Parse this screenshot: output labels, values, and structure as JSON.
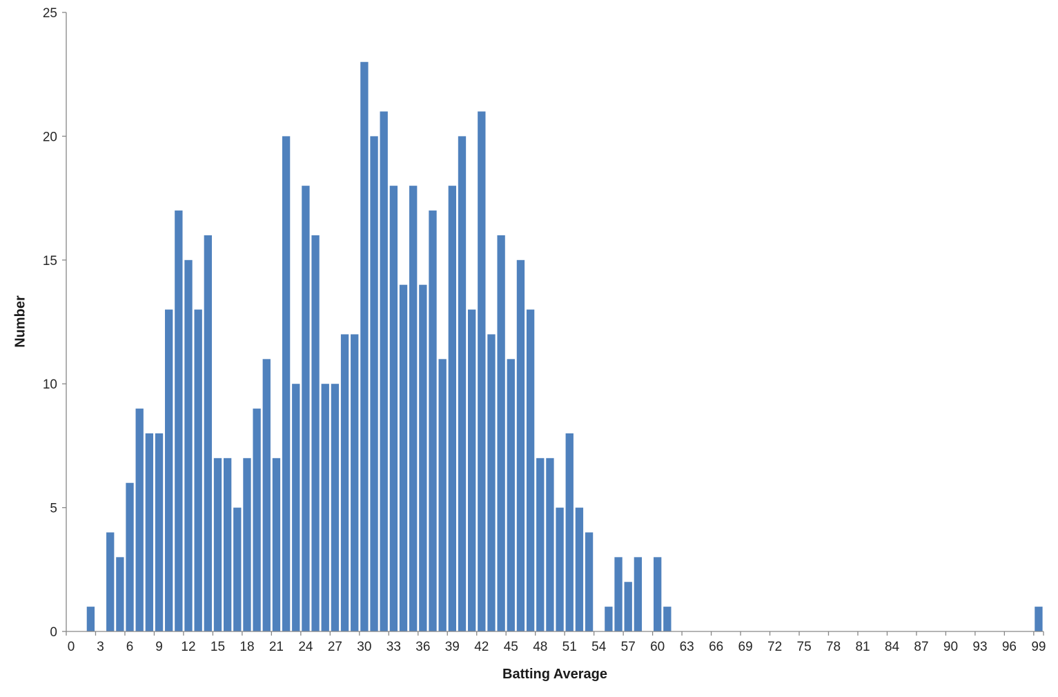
{
  "chart_data": {
    "type": "bar",
    "title": "",
    "xlabel": "Batting Average",
    "ylabel": "Number",
    "x": [
      2,
      4,
      5,
      6,
      7,
      8,
      9,
      10,
      11,
      12,
      13,
      14,
      15,
      16,
      17,
      18,
      19,
      20,
      21,
      22,
      23,
      24,
      25,
      26,
      27,
      28,
      29,
      30,
      31,
      32,
      33,
      34,
      35,
      36,
      37,
      38,
      39,
      40,
      41,
      42,
      43,
      44,
      45,
      46,
      47,
      48,
      49,
      50,
      51,
      52,
      53,
      55,
      56,
      57,
      58,
      60,
      61,
      99
    ],
    "values": [
      1,
      4,
      3,
      6,
      9,
      8,
      8,
      13,
      17,
      15,
      13,
      16,
      7,
      7,
      5,
      7,
      9,
      11,
      7,
      20,
      10,
      18,
      16,
      10,
      10,
      12,
      12,
      23,
      20,
      21,
      18,
      14,
      18,
      14,
      17,
      11,
      18,
      20,
      13,
      21,
      12,
      16,
      11,
      15,
      13,
      7,
      7,
      5,
      8,
      5,
      4,
      1,
      3,
      2,
      3,
      3,
      1,
      1
    ],
    "xlim": [
      0,
      100
    ],
    "ylim": [
      0,
      25
    ],
    "xticks": [
      0,
      3,
      6,
      9,
      12,
      15,
      18,
      21,
      24,
      27,
      30,
      33,
      36,
      39,
      42,
      45,
      48,
      51,
      54,
      57,
      60,
      63,
      66,
      69,
      72,
      75,
      78,
      81,
      84,
      87,
      90,
      93,
      96,
      99
    ],
    "yticks": [
      0,
      5,
      10,
      15,
      20,
      25
    ],
    "grid": false,
    "legend": "none",
    "bar_color": "#4f81bd",
    "axis_color": "#868686",
    "text_color": "#262626"
  }
}
